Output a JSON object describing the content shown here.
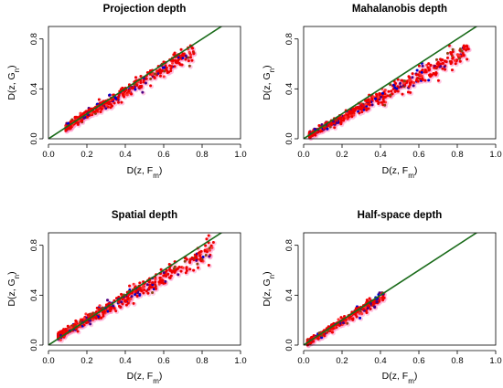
{
  "colors": {
    "series_colors": [
      "#ee0000",
      "#ff3333",
      "#4b0082",
      "#0000cd",
      "#8b4513"
    ],
    "halo_color": "#ff99cc",
    "reference_line": "#1a6b1a"
  },
  "chart_data": [
    {
      "type": "scatter",
      "title": "Projection depth",
      "xlabel": {
        "main": "D(z, F",
        "sub": "m",
        "close": ")"
      },
      "ylabel": {
        "main": "D(z, G",
        "sub": "n",
        "close": ")"
      },
      "xlim": [
        0.0,
        1.0
      ],
      "ylim": [
        0.0,
        0.9
      ],
      "xticks": [
        0.0,
        0.2,
        0.4,
        0.6,
        0.8,
        1.0
      ],
      "yticks": [
        0.0,
        0.4,
        0.8
      ],
      "xtick_labels": [
        "0.0",
        "0.2",
        "0.4",
        "0.6",
        "0.8",
        "1.0"
      ],
      "ytick_labels": [
        "0.0",
        "0.4",
        "0.8"
      ],
      "reference_line": {
        "from": [
          0,
          0
        ],
        "to": [
          1,
          1
        ]
      },
      "cloud": {
        "x_min": 0.09,
        "x_max": 0.76,
        "y_start": 0.09,
        "y_end": 0.72,
        "spread_lo": 0.03,
        "spread_hi": 0.09,
        "mean_bias": -0.01,
        "seed": 11,
        "n": 520
      }
    },
    {
      "type": "scatter",
      "title": "Mahalanobis depth",
      "xlabel": {
        "main": "D(z, F",
        "sub": "m",
        "close": ")"
      },
      "ylabel": {
        "main": "D(z, G",
        "sub": "n",
        "close": ")"
      },
      "xlim": [
        0.0,
        1.0
      ],
      "ylim": [
        0.0,
        0.9
      ],
      "xticks": [
        0.0,
        0.2,
        0.4,
        0.6,
        0.8,
        1.0
      ],
      "yticks": [
        0.0,
        0.4,
        0.8
      ],
      "xtick_labels": [
        "0.0",
        "0.2",
        "0.4",
        "0.6",
        "0.8",
        "1.0"
      ],
      "ytick_labels": [
        "0.0",
        "0.4",
        "0.8"
      ],
      "reference_line": {
        "from": [
          0,
          0
        ],
        "to": [
          1,
          1
        ]
      },
      "cloud": {
        "x_min": 0.03,
        "x_max": 0.86,
        "y_start": 0.03,
        "y_end": 0.73,
        "spread_lo": 0.02,
        "spread_hi": 0.1,
        "mean_bias": -0.02,
        "seed": 23,
        "n": 620
      }
    },
    {
      "type": "scatter",
      "title": "Spatial depth",
      "xlabel": {
        "main": "D(z, F",
        "sub": "m",
        "close": ")"
      },
      "ylabel": {
        "main": "D(z, G",
        "sub": "n",
        "close": ")"
      },
      "xlim": [
        0.0,
        1.0
      ],
      "ylim": [
        0.0,
        0.9
      ],
      "xticks": [
        0.0,
        0.2,
        0.4,
        0.6,
        0.8,
        1.0
      ],
      "yticks": [
        0.0,
        0.4,
        0.8
      ],
      "xtick_labels": [
        "0.0",
        "0.2",
        "0.4",
        "0.6",
        "0.8",
        "1.0"
      ],
      "ytick_labels": [
        "0.0",
        "0.4",
        "0.8"
      ],
      "reference_line": {
        "from": [
          0,
          0
        ],
        "to": [
          1,
          1
        ]
      },
      "cloud": {
        "x_min": 0.05,
        "x_max": 0.86,
        "y_start": 0.07,
        "y_end": 0.78,
        "spread_lo": 0.03,
        "spread_hi": 0.1,
        "mean_bias": 0.0,
        "seed": 37,
        "n": 620
      }
    },
    {
      "type": "scatter",
      "title": "Half-space depth",
      "xlabel": {
        "main": "D(z, F",
        "sub": "m",
        "close": ")"
      },
      "ylabel": {
        "main": "D(z, G",
        "sub": "n",
        "close": ")"
      },
      "xlim": [
        0.0,
        1.0
      ],
      "ylim": [
        0.0,
        0.9
      ],
      "xticks": [
        0.0,
        0.2,
        0.4,
        0.6,
        0.8,
        1.0
      ],
      "yticks": [
        0.0,
        0.4,
        0.8
      ],
      "xtick_labels": [
        "0.0",
        "0.2",
        "0.4",
        "0.6",
        "0.8",
        "1.0"
      ],
      "ytick_labels": [
        "0.0",
        "0.4",
        "0.8"
      ],
      "reference_line": {
        "from": [
          0,
          0
        ],
        "to": [
          1,
          1
        ]
      },
      "cloud": {
        "x_min": 0.02,
        "x_max": 0.42,
        "y_start": 0.02,
        "y_end": 0.4,
        "spread_lo": 0.02,
        "spread_hi": 0.06,
        "mean_bias": 0.0,
        "seed": 53,
        "n": 420
      }
    }
  ]
}
